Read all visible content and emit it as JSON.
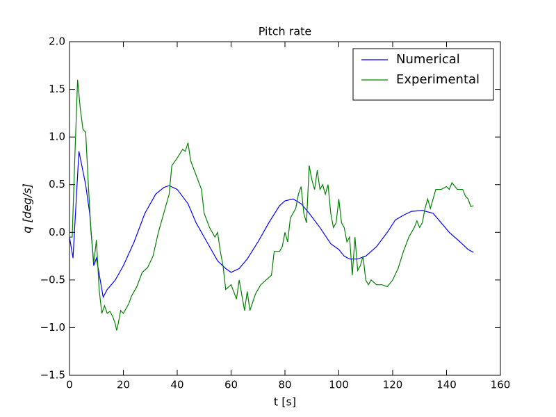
{
  "chart_data": {
    "type": "line",
    "title": "Pitch rate",
    "x_label": "t [s]",
    "y_label": "q [deg/s]",
    "xlim": [
      0,
      160
    ],
    "ylim": [
      -1.5,
      2.0
    ],
    "xticks": [
      0,
      20,
      40,
      60,
      80,
      100,
      120,
      140,
      160
    ],
    "yticks": [
      {
        "value": -1.5,
        "label": "−1.5"
      },
      {
        "value": -1.0,
        "label": "−1.0"
      },
      {
        "value": -0.5,
        "label": "−0.5"
      },
      {
        "value": 0,
        "label": "0.0"
      },
      0.5,
      {
        "value": 1.0,
        "label": "1.0"
      },
      1.5,
      {
        "value": 2.0,
        "label": "2.0"
      }
    ],
    "legend": "upper right",
    "series": [
      {
        "name": "Numerical",
        "color": "#0000ff",
        "x": [
          0,
          1.3,
          3.5,
          6,
          7.5,
          9,
          10,
          12.5,
          14,
          17,
          20,
          24,
          28,
          32,
          35,
          37,
          40,
          44,
          47,
          51,
          55,
          58,
          60,
          63,
          66,
          70,
          74,
          78,
          80,
          83,
          86,
          89,
          93,
          97,
          100,
          102,
          104,
          107,
          110,
          114,
          118,
          121,
          124,
          127,
          131,
          135,
          138,
          141,
          145,
          148,
          150
        ],
        "values": [
          -0.05,
          -0.27,
          0.85,
          0.5,
          0.2,
          -0.35,
          -0.27,
          -0.68,
          -0.6,
          -0.5,
          -0.35,
          -0.1,
          0.2,
          0.4,
          0.47,
          0.49,
          0.45,
          0.3,
          0.1,
          -0.1,
          -0.3,
          -0.38,
          -0.42,
          -0.38,
          -0.28,
          -0.1,
          0.1,
          0.28,
          0.33,
          0.35,
          0.3,
          0.2,
          0.05,
          -0.12,
          -0.18,
          -0.25,
          -0.28,
          -0.28,
          -0.25,
          -0.15,
          0.0,
          0.13,
          0.18,
          0.22,
          0.23,
          0.2,
          0.1,
          0.0,
          -0.1,
          -0.18,
          -0.21
        ]
      },
      {
        "name": "Experimental",
        "color": "#008000",
        "x": [
          0,
          1,
          2,
          3,
          4,
          5,
          6,
          7,
          8,
          9,
          10,
          11,
          12,
          13,
          14,
          15,
          16,
          17,
          17.5,
          18,
          19,
          20,
          22,
          23,
          25,
          27,
          29,
          31,
          33,
          35,
          37,
          38,
          40,
          42,
          43,
          44,
          45,
          47,
          49,
          50,
          52,
          54,
          55,
          56,
          57,
          58,
          60,
          62,
          63,
          65,
          66,
          67,
          69,
          71,
          73,
          75,
          76,
          78,
          79,
          80,
          81,
          82,
          84,
          85,
          86,
          87,
          88,
          89,
          90,
          91,
          92,
          93,
          94,
          95,
          96,
          97,
          98,
          99,
          100,
          101,
          102,
          103,
          104,
          105,
          106,
          107,
          108,
          109,
          110,
          111,
          112,
          114,
          116,
          118,
          120,
          122,
          124,
          126,
          127,
          128,
          129,
          130,
          131,
          132,
          133,
          134,
          135,
          136,
          138,
          140,
          141,
          142,
          144,
          146,
          147,
          148,
          149,
          150
        ],
        "values": [
          -0.05,
          -0.05,
          0.8,
          1.6,
          1.3,
          1.08,
          1.05,
          0.5,
          0.0,
          -0.32,
          -0.08,
          -0.6,
          -0.85,
          -0.77,
          -0.85,
          -0.83,
          -0.88,
          -0.96,
          -1.03,
          -0.97,
          -0.82,
          -0.85,
          -0.75,
          -0.67,
          -0.57,
          -0.42,
          -0.37,
          -0.25,
          0.0,
          0.2,
          0.4,
          0.7,
          0.78,
          0.87,
          0.85,
          0.94,
          0.75,
          0.6,
          0.45,
          0.2,
          0.05,
          -0.05,
          0.0,
          -0.2,
          -0.35,
          -0.6,
          -0.55,
          -0.7,
          -0.5,
          -0.82,
          -0.62,
          -0.82,
          -0.65,
          -0.55,
          -0.5,
          -0.45,
          -0.2,
          -0.2,
          -0.15,
          0.0,
          -0.1,
          0.15,
          0.25,
          0.4,
          0.48,
          0.2,
          0.1,
          0.7,
          0.55,
          0.45,
          0.65,
          0.45,
          0.5,
          0.4,
          0.5,
          0.2,
          0.05,
          0.1,
          0.35,
          0.1,
          0.05,
          -0.1,
          -0.05,
          -0.45,
          -0.05,
          -0.4,
          -0.35,
          -0.25,
          -0.5,
          -0.55,
          -0.5,
          -0.55,
          -0.55,
          -0.57,
          -0.5,
          -0.38,
          -0.2,
          -0.05,
          0.0,
          0.05,
          0.12,
          0.05,
          0.1,
          0.25,
          0.35,
          0.25,
          0.35,
          0.45,
          0.45,
          0.48,
          0.45,
          0.52,
          0.45,
          0.45,
          0.38,
          0.35,
          0.27,
          0.28
        ]
      }
    ]
  }
}
